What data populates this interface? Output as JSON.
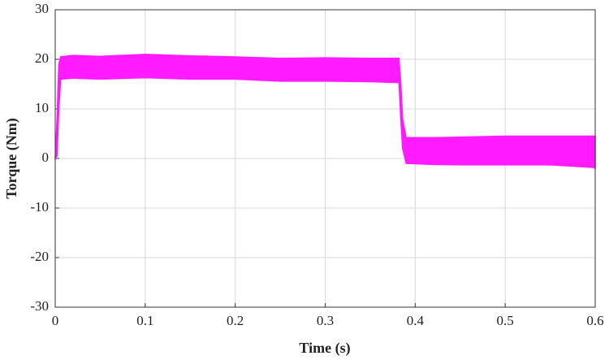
{
  "chart_data": {
    "type": "band",
    "xlabel": "Time (s)",
    "ylabel": "Torque (Nm)",
    "x": [
      0,
      0.002,
      0.004,
      0.006,
      0.02,
      0.05,
      0.1,
      0.15,
      0.2,
      0.25,
      0.3,
      0.35,
      0.382,
      0.384,
      0.386,
      0.39,
      0.42,
      0.45,
      0.5,
      0.55,
      0.598,
      0.6
    ],
    "high": [
      0,
      8,
      19,
      20.5,
      20.8,
      20.6,
      21,
      20.7,
      20.5,
      20.2,
      20.3,
      20.2,
      20.2,
      15,
      8,
      4.2,
      4.2,
      4.3,
      4.5,
      4.5,
      4.5,
      4.5
    ],
    "low": [
      0,
      0.5,
      10,
      16,
      16.2,
      16,
      16.3,
      16,
      16,
      15.6,
      15.6,
      15.5,
      15.3,
      8,
      2,
      -1,
      -1.2,
      -1.3,
      -1.3,
      -1.3,
      -1.8,
      -2
    ],
    "color": "#ff1aff",
    "xlim": [
      0,
      0.6
    ],
    "xticks": [
      0,
      0.1,
      0.2,
      0.3,
      0.4,
      0.5,
      0.6
    ],
    "ylim": [
      -30,
      30
    ],
    "yticks": [
      -30,
      -20,
      -10,
      0,
      10,
      20,
      30
    ],
    "grid": true
  }
}
